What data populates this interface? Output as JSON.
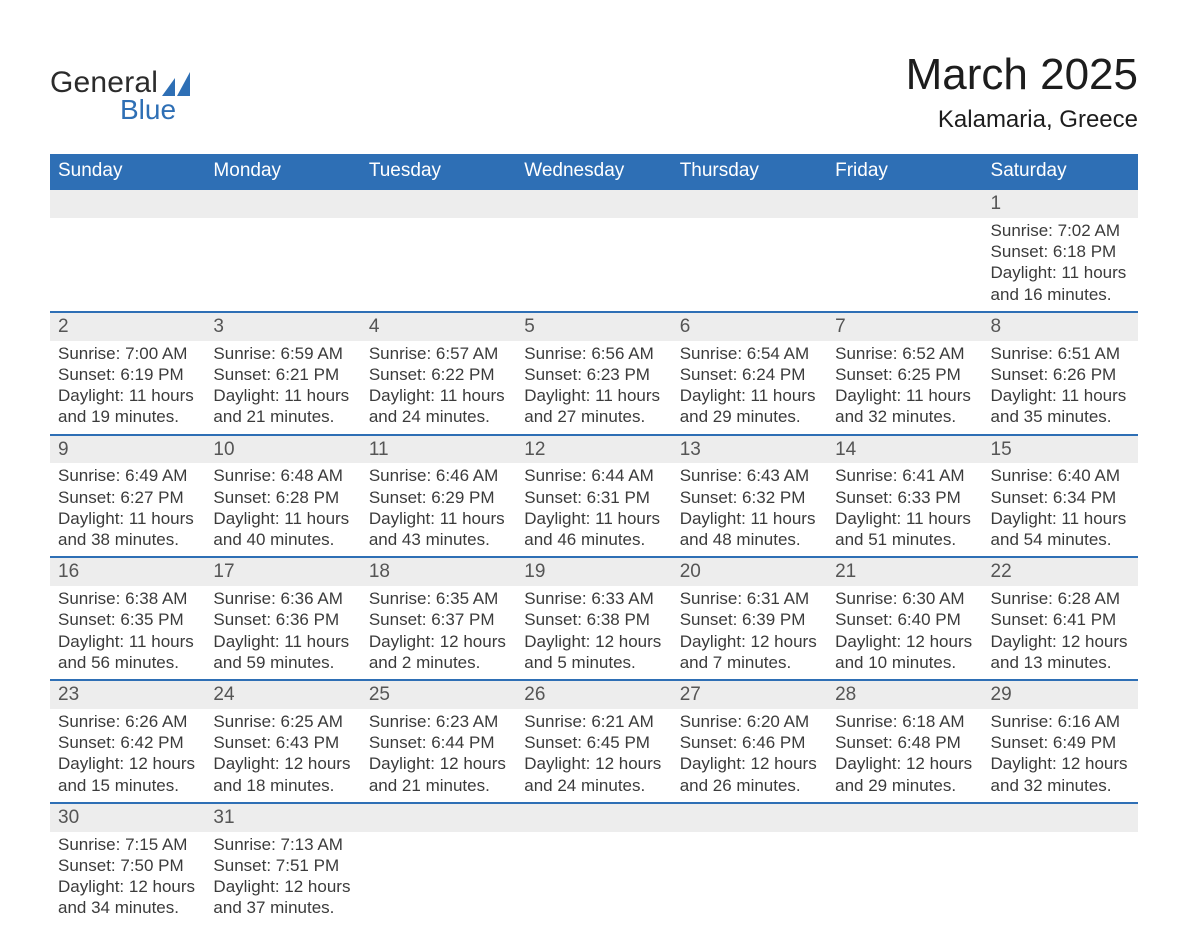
{
  "brand": {
    "general": "General",
    "blue": "Blue"
  },
  "title": "March 2025",
  "location": "Kalamaria, Greece",
  "colors": {
    "header_bg": "#2e6fb5",
    "header_text": "#ffffff",
    "daynum_bg": "#ededed",
    "daynum_text": "#555555",
    "body_text": "#3b3b3b",
    "row_rule": "#2e6fb5",
    "page_bg": "#ffffff",
    "brand_blue": "#2e6fb5",
    "brand_dark": "#2b2b2b"
  },
  "columns": [
    "Sunday",
    "Monday",
    "Tuesday",
    "Wednesday",
    "Thursday",
    "Friday",
    "Saturday"
  ],
  "weeks": [
    [
      null,
      null,
      null,
      null,
      null,
      null,
      {
        "n": "1",
        "sunrise": "7:02 AM",
        "sunset": "6:18 PM",
        "day": "11 hours and 16 minutes."
      }
    ],
    [
      {
        "n": "2",
        "sunrise": "7:00 AM",
        "sunset": "6:19 PM",
        "day": "11 hours and 19 minutes."
      },
      {
        "n": "3",
        "sunrise": "6:59 AM",
        "sunset": "6:21 PM",
        "day": "11 hours and 21 minutes."
      },
      {
        "n": "4",
        "sunrise": "6:57 AM",
        "sunset": "6:22 PM",
        "day": "11 hours and 24 minutes."
      },
      {
        "n": "5",
        "sunrise": "6:56 AM",
        "sunset": "6:23 PM",
        "day": "11 hours and 27 minutes."
      },
      {
        "n": "6",
        "sunrise": "6:54 AM",
        "sunset": "6:24 PM",
        "day": "11 hours and 29 minutes."
      },
      {
        "n": "7",
        "sunrise": "6:52 AM",
        "sunset": "6:25 PM",
        "day": "11 hours and 32 minutes."
      },
      {
        "n": "8",
        "sunrise": "6:51 AM",
        "sunset": "6:26 PM",
        "day": "11 hours and 35 minutes."
      }
    ],
    [
      {
        "n": "9",
        "sunrise": "6:49 AM",
        "sunset": "6:27 PM",
        "day": "11 hours and 38 minutes."
      },
      {
        "n": "10",
        "sunrise": "6:48 AM",
        "sunset": "6:28 PM",
        "day": "11 hours and 40 minutes."
      },
      {
        "n": "11",
        "sunrise": "6:46 AM",
        "sunset": "6:29 PM",
        "day": "11 hours and 43 minutes."
      },
      {
        "n": "12",
        "sunrise": "6:44 AM",
        "sunset": "6:31 PM",
        "day": "11 hours and 46 minutes."
      },
      {
        "n": "13",
        "sunrise": "6:43 AM",
        "sunset": "6:32 PM",
        "day": "11 hours and 48 minutes."
      },
      {
        "n": "14",
        "sunrise": "6:41 AM",
        "sunset": "6:33 PM",
        "day": "11 hours and 51 minutes."
      },
      {
        "n": "15",
        "sunrise": "6:40 AM",
        "sunset": "6:34 PM",
        "day": "11 hours and 54 minutes."
      }
    ],
    [
      {
        "n": "16",
        "sunrise": "6:38 AM",
        "sunset": "6:35 PM",
        "day": "11 hours and 56 minutes."
      },
      {
        "n": "17",
        "sunrise": "6:36 AM",
        "sunset": "6:36 PM",
        "day": "11 hours and 59 minutes."
      },
      {
        "n": "18",
        "sunrise": "6:35 AM",
        "sunset": "6:37 PM",
        "day": "12 hours and 2 minutes."
      },
      {
        "n": "19",
        "sunrise": "6:33 AM",
        "sunset": "6:38 PM",
        "day": "12 hours and 5 minutes."
      },
      {
        "n": "20",
        "sunrise": "6:31 AM",
        "sunset": "6:39 PM",
        "day": "12 hours and 7 minutes."
      },
      {
        "n": "21",
        "sunrise": "6:30 AM",
        "sunset": "6:40 PM",
        "day": "12 hours and 10 minutes."
      },
      {
        "n": "22",
        "sunrise": "6:28 AM",
        "sunset": "6:41 PM",
        "day": "12 hours and 13 minutes."
      }
    ],
    [
      {
        "n": "23",
        "sunrise": "6:26 AM",
        "sunset": "6:42 PM",
        "day": "12 hours and 15 minutes."
      },
      {
        "n": "24",
        "sunrise": "6:25 AM",
        "sunset": "6:43 PM",
        "day": "12 hours and 18 minutes."
      },
      {
        "n": "25",
        "sunrise": "6:23 AM",
        "sunset": "6:44 PM",
        "day": "12 hours and 21 minutes."
      },
      {
        "n": "26",
        "sunrise": "6:21 AM",
        "sunset": "6:45 PM",
        "day": "12 hours and 24 minutes."
      },
      {
        "n": "27",
        "sunrise": "6:20 AM",
        "sunset": "6:46 PM",
        "day": "12 hours and 26 minutes."
      },
      {
        "n": "28",
        "sunrise": "6:18 AM",
        "sunset": "6:48 PM",
        "day": "12 hours and 29 minutes."
      },
      {
        "n": "29",
        "sunrise": "6:16 AM",
        "sunset": "6:49 PM",
        "day": "12 hours and 32 minutes."
      }
    ],
    [
      {
        "n": "30",
        "sunrise": "7:15 AM",
        "sunset": "7:50 PM",
        "day": "12 hours and 34 minutes."
      },
      {
        "n": "31",
        "sunrise": "7:13 AM",
        "sunset": "7:51 PM",
        "day": "12 hours and 37 minutes."
      },
      null,
      null,
      null,
      null,
      null
    ]
  ],
  "labels": {
    "sunrise": "Sunrise:",
    "sunset": "Sunset:",
    "daylight": "Daylight:"
  }
}
